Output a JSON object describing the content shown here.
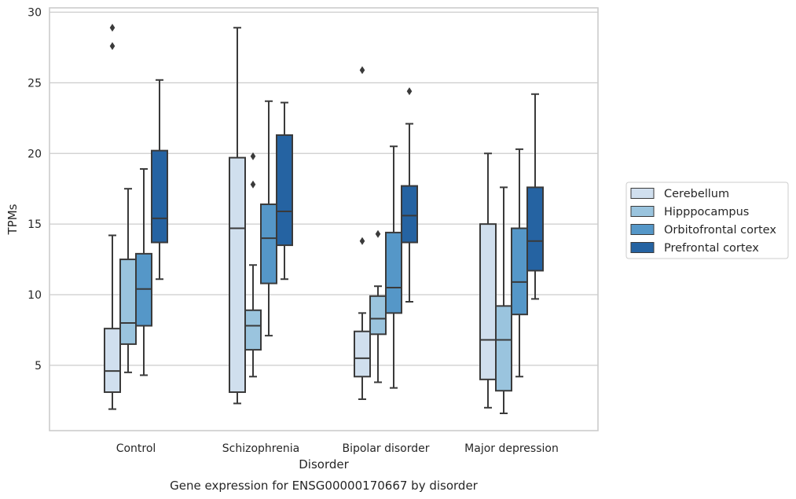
{
  "chart_data": {
    "type": "box",
    "title": "Gene expression for ENSG00000170667 by disorder",
    "xlabel": "Disorder",
    "ylabel": "TPMs",
    "ylim": [
      0.3,
      30.2
    ],
    "yticks": [
      5,
      10,
      15,
      20,
      25,
      30
    ],
    "grid": "horizontal",
    "legend_position": "right",
    "categories": [
      "Control",
      "Schizophrenia",
      "Bipolar disorder",
      "Major depression"
    ],
    "series": [
      {
        "name": "Cerebellum",
        "color": "#d0dfee",
        "boxes": [
          {
            "whisker_low": 1.9,
            "q1": 3.1,
            "median": 4.6,
            "q3": 7.6,
            "whisker_high": 14.2,
            "outliers": [
              27.6,
              28.9
            ]
          },
          {
            "whisker_low": 2.3,
            "q1": 3.1,
            "median": 14.7,
            "q3": 19.7,
            "whisker_high": 28.9,
            "outliers": []
          },
          {
            "whisker_low": 2.6,
            "q1": 4.2,
            "median": 5.5,
            "q3": 7.4,
            "whisker_high": 8.7,
            "outliers": [
              13.8,
              25.9
            ]
          },
          {
            "whisker_low": 2.0,
            "q1": 4.0,
            "median": 6.8,
            "q3": 15.0,
            "whisker_high": 20.0,
            "outliers": []
          }
        ]
      },
      {
        "name": "Hipppocampus",
        "color": "#9ac4de",
        "boxes": [
          {
            "whisker_low": 4.5,
            "q1": 6.5,
            "median": 8.0,
            "q3": 12.5,
            "whisker_high": 17.5,
            "outliers": []
          },
          {
            "whisker_low": 4.2,
            "q1": 6.1,
            "median": 7.8,
            "q3": 8.9,
            "whisker_high": 12.1,
            "outliers": [
              17.8,
              19.8
            ]
          },
          {
            "whisker_low": 3.8,
            "q1": 7.2,
            "median": 8.3,
            "q3": 9.9,
            "whisker_high": 10.6,
            "outliers": [
              14.3
            ]
          },
          {
            "whisker_low": 1.6,
            "q1": 3.2,
            "median": 6.8,
            "q3": 9.2,
            "whisker_high": 17.6,
            "outliers": []
          }
        ]
      },
      {
        "name": "Orbitofrontal cortex",
        "color": "#5597c8",
        "boxes": [
          {
            "whisker_low": 4.3,
            "q1": 7.8,
            "median": 10.4,
            "q3": 12.9,
            "whisker_high": 18.9,
            "outliers": []
          },
          {
            "whisker_low": 7.1,
            "q1": 10.8,
            "median": 14.0,
            "q3": 16.4,
            "whisker_high": 23.7,
            "outliers": []
          },
          {
            "whisker_low": 3.4,
            "q1": 8.7,
            "median": 10.5,
            "q3": 14.4,
            "whisker_high": 20.5,
            "outliers": []
          },
          {
            "whisker_low": 4.2,
            "q1": 8.6,
            "median": 10.9,
            "q3": 14.7,
            "whisker_high": 20.3,
            "outliers": []
          }
        ]
      },
      {
        "name": "Prefrontal cortex",
        "color": "#2563a2",
        "boxes": [
          {
            "whisker_low": 11.1,
            "q1": 13.7,
            "median": 15.4,
            "q3": 20.2,
            "whisker_high": 25.2,
            "outliers": []
          },
          {
            "whisker_low": 11.1,
            "q1": 13.5,
            "median": 15.9,
            "q3": 21.3,
            "whisker_high": 23.6,
            "outliers": []
          },
          {
            "whisker_low": 9.5,
            "q1": 13.7,
            "median": 15.6,
            "q3": 17.7,
            "whisker_high": 22.1,
            "outliers": [
              24.4
            ]
          },
          {
            "whisker_low": 9.7,
            "q1": 11.7,
            "median": 13.8,
            "q3": 17.6,
            "whisker_high": 24.2,
            "outliers": []
          }
        ]
      }
    ]
  }
}
